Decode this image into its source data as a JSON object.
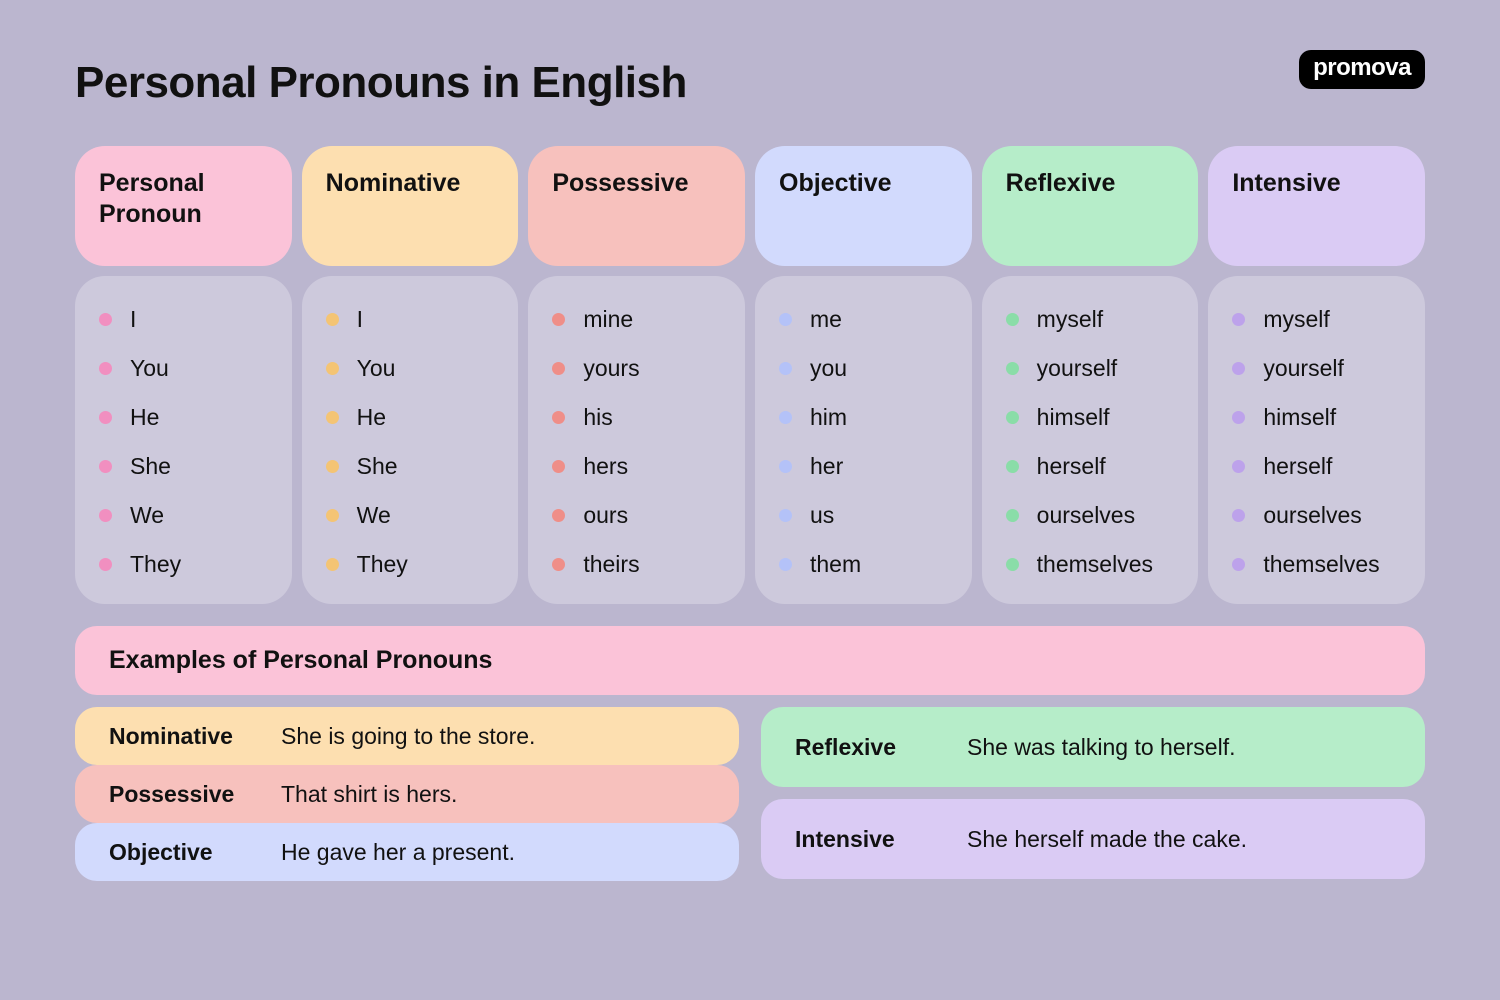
{
  "title": "Personal Pronouns in English",
  "logo": "promova",
  "colors": {
    "bg": "#bbb6cf",
    "cell": "#cdc9dc",
    "pink_header": "#fbc3d8",
    "orange_header": "#fddfb0",
    "coral_header": "#f7c1bd",
    "blue_header": "#d2dafd",
    "green_header": "#b6edc9",
    "purple_header": "#dacbf4",
    "pink_bullet": "#f18fc0",
    "orange_bullet": "#f4c474",
    "coral_bullet": "#ef8e88",
    "blue_bullet": "#b4c2f8",
    "green_bullet": "#8adda8",
    "purple_bullet": "#bda2eb"
  },
  "columns": [
    {
      "key": "personal",
      "header": "Personal Pronoun",
      "header_color": "pink_header",
      "bullet_color": "pink_bullet",
      "items": [
        "I",
        "You",
        "He",
        "She",
        "We",
        "They"
      ]
    },
    {
      "key": "nominative",
      "header": "Nominative",
      "header_color": "orange_header",
      "bullet_color": "orange_bullet",
      "items": [
        "I",
        "You",
        "He",
        "She",
        "We",
        "They"
      ]
    },
    {
      "key": "possessive",
      "header": "Possessive",
      "header_color": "coral_header",
      "bullet_color": "coral_bullet",
      "items": [
        "mine",
        "yours",
        "his",
        "hers",
        "ours",
        "theirs"
      ]
    },
    {
      "key": "objective",
      "header": "Objective",
      "header_color": "blue_header",
      "bullet_color": "blue_bullet",
      "items": [
        "me",
        "you",
        "him",
        "her",
        "us",
        "them"
      ]
    },
    {
      "key": "reflexive",
      "header": "Reflexive",
      "header_color": "green_header",
      "bullet_color": "green_bullet",
      "items": [
        "myself",
        "yourself",
        "himself",
        "herself",
        "ourselves",
        "themselves"
      ]
    },
    {
      "key": "intensive",
      "header": "Intensive",
      "header_color": "purple_header",
      "bullet_color": "purple_bullet",
      "items": [
        "myself",
        "yourself",
        "himself",
        "herself",
        "ourselves",
        "themselves"
      ]
    }
  ],
  "examples_title": "Examples of Personal Pronouns",
  "examples_left": [
    {
      "label": "Nominative",
      "text": "She is going to the store.",
      "bg": "orange_header"
    },
    {
      "label": "Possessive",
      "text": "That shirt is hers.",
      "bg": "coral_header"
    },
    {
      "label": "Objective",
      "text": "He gave her a present.",
      "bg": "blue_header"
    }
  ],
  "examples_right": [
    {
      "label": "Reflexive",
      "text": "She was talking to herself.",
      "bg": "green_header"
    },
    {
      "label": "Intensive",
      "text": "She herself made the cake.",
      "bg": "purple_header"
    }
  ]
}
